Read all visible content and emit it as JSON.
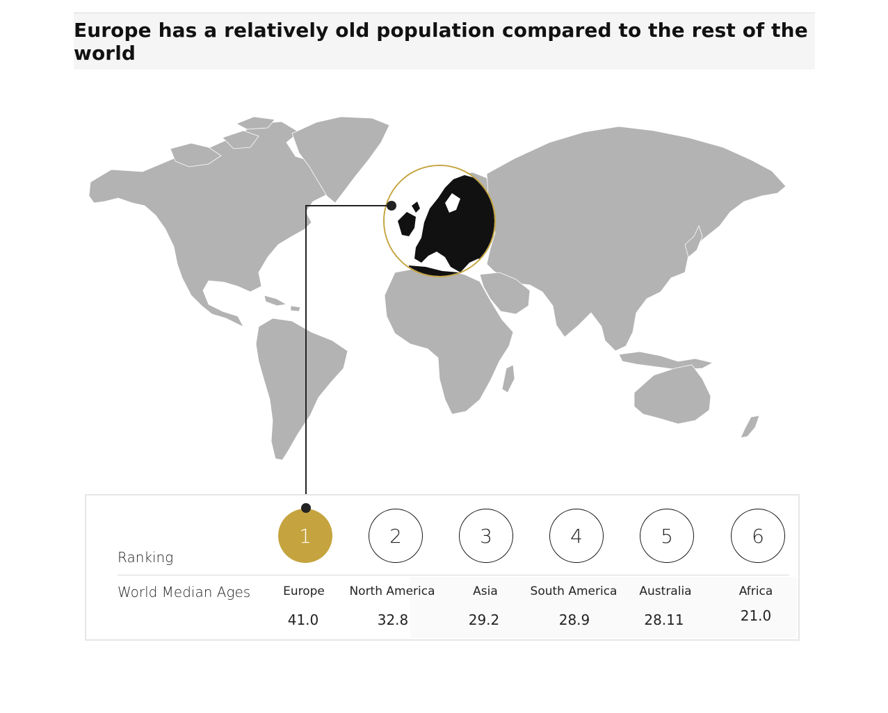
{
  "title": "Europe has a relatively old population compared to the rest of the world",
  "colors": {
    "land": "#b3b3b3",
    "highlight": "#111111",
    "accent": "#c5a43f",
    "background": "#ffffff"
  },
  "table": {
    "ranking_label": "Ranking",
    "metric_label": "World Median Ages",
    "ranks": [
      {
        "rank": "1",
        "region": "Europe",
        "median_age": "41.0",
        "highlighted": true
      },
      {
        "rank": "2",
        "region": "North America",
        "median_age": "32.8"
      },
      {
        "rank": "3",
        "region": "Asia",
        "median_age": "29.2"
      },
      {
        "rank": "4",
        "region": "South America",
        "median_age": "28.9"
      },
      {
        "rank": "5",
        "region": "Australia",
        "median_age": "28.11"
      },
      {
        "rank": "6",
        "region": "Africa",
        "median_age": "21.0"
      }
    ]
  }
}
